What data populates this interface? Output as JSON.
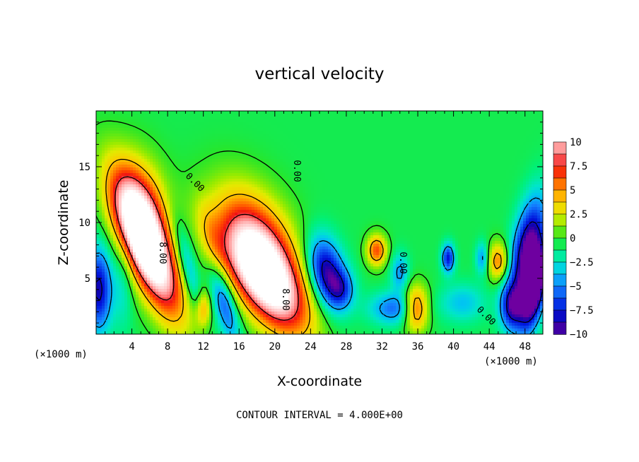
{
  "chart_data": {
    "type": "heatmap",
    "title": "vertical velocity",
    "xlabel": "X-coordinate",
    "ylabel": "Z-coordinate",
    "x_unit": "(×1000 m)",
    "x_unit_left": "(×1000 m)",
    "x_ticks": [
      4,
      8,
      12,
      16,
      20,
      24,
      28,
      32,
      36,
      40,
      44,
      48
    ],
    "y_ticks": [
      5,
      10,
      15
    ],
    "xlim": [
      0,
      50
    ],
    "ylim": [
      0,
      20
    ],
    "colorbar": {
      "ticks": [
        "10",
        "7.5",
        "5",
        "2.5",
        "0",
        "−2.5",
        "−5",
        "−7.5",
        "−10"
      ],
      "range": [
        -10,
        10
      ]
    },
    "contour_interval": "CONTOUR INTERVAL = 4.000E+00",
    "contour_labels": [
      "0.00",
      "0.00",
      "8.00",
      "8.00",
      "0.00",
      "0.00"
    ],
    "cells": [
      {
        "x": 5.7,
        "z": 7.8,
        "value": 16,
        "sx": 1.8,
        "sz": 4.2,
        "tilt": -0.45
      },
      {
        "x": 5.2,
        "z": 11.5,
        "value": 6,
        "sx": 2.2,
        "sz": 3.2,
        "tilt": -0.2
      },
      {
        "x": 19.0,
        "z": 5.0,
        "value": 15,
        "sx": 2.6,
        "sz": 3.4,
        "tilt": -0.55
      },
      {
        "x": 18.0,
        "z": 9.0,
        "value": 6,
        "sx": 3.0,
        "sz": 3.4,
        "tilt": -0.4
      },
      {
        "x": 0.3,
        "z": 4.0,
        "value": -8,
        "sx": 1.0,
        "sz": 2.6,
        "tilt": 0
      },
      {
        "x": 10.3,
        "z": 6.0,
        "value": -4,
        "sx": 0.7,
        "sz": 3.0,
        "tilt": -0.3
      },
      {
        "x": 14.3,
        "z": 3.0,
        "value": -6,
        "sx": 0.9,
        "sz": 2.6,
        "tilt": -0.3
      },
      {
        "x": 12.0,
        "z": 2.2,
        "value": 5,
        "sx": 0.6,
        "sz": 1.2,
        "tilt": 0
      },
      {
        "x": 13.0,
        "z": 8.0,
        "value": 3,
        "sx": 1.0,
        "sz": 2.6,
        "tilt": -0.3
      },
      {
        "x": 25.8,
        "z": 5.5,
        "value": -9,
        "sx": 1.4,
        "sz": 2.2,
        "tilt": -0.2
      },
      {
        "x": 27.5,
        "z": 4.0,
        "value": -4,
        "sx": 1.0,
        "sz": 1.2,
        "tilt": 0
      },
      {
        "x": 31.4,
        "z": 7.5,
        "value": 7,
        "sx": 0.8,
        "sz": 1.0,
        "tilt": 0
      },
      {
        "x": 33.5,
        "z": 2.3,
        "value": -5,
        "sx": 2.0,
        "sz": 1.0,
        "tilt": 0
      },
      {
        "x": 34.0,
        "z": 5.5,
        "value": -4,
        "sx": 0.7,
        "sz": 1.2,
        "tilt": 0
      },
      {
        "x": 35.8,
        "z": 2.3,
        "value": 8,
        "sx": 1.0,
        "sz": 1.4,
        "tilt": 0
      },
      {
        "x": 39.4,
        "z": 6.8,
        "value": -7,
        "sx": 0.5,
        "sz": 0.9,
        "tilt": 0
      },
      {
        "x": 41.0,
        "z": 2.8,
        "value": -3,
        "sx": 1.8,
        "sz": 1.2,
        "tilt": 0
      },
      {
        "x": 46.5,
        "z": 2.5,
        "value": -7,
        "sx": 0.9,
        "sz": 1.5,
        "tilt": 0
      },
      {
        "x": 45.0,
        "z": 6.5,
        "value": 6,
        "sx": 0.8,
        "sz": 1.2,
        "tilt": 0
      },
      {
        "x": 43.2,
        "z": 6.8,
        "value": -4,
        "sx": 0.5,
        "sz": 1.0,
        "tilt": 0
      },
      {
        "x": 48.3,
        "z": 7.5,
        "value": -10,
        "sx": 1.2,
        "sz": 3.2,
        "tilt": 0.2
      },
      {
        "x": 49.0,
        "z": 4.0,
        "value": -12,
        "sx": 0.9,
        "sz": 2.5,
        "tilt": 0.2
      },
      {
        "x": 3.0,
        "z": 4.5,
        "value": -2,
        "sx": 0.8,
        "sz": 3.0,
        "tilt": 0
      }
    ]
  }
}
